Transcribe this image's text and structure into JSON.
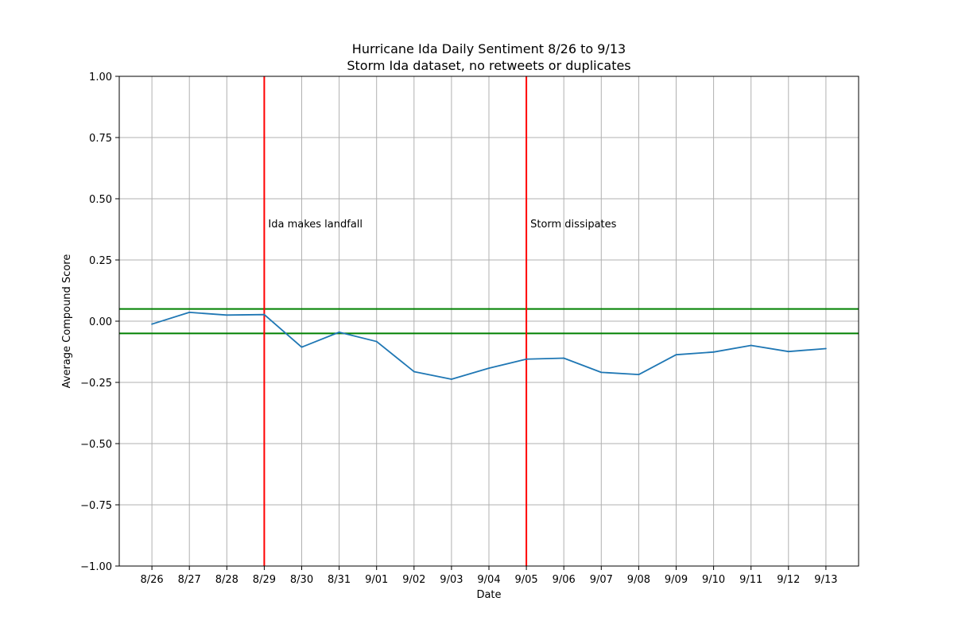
{
  "chart_data": {
    "type": "line",
    "title": "Hurricane Ida Daily Sentiment 8/26 to 9/13",
    "subtitle": "Storm Ida dataset, no retweets or duplicates",
    "xlabel": "Date",
    "ylabel": "Average Compound Score",
    "ylim": [
      -1.0,
      1.0
    ],
    "yticks": [
      "1.00",
      "0.75",
      "0.50",
      "0.25",
      "0.00",
      "−0.25",
      "−0.50",
      "−0.75",
      "−1.00"
    ],
    "ytick_values": [
      1.0,
      0.75,
      0.5,
      0.25,
      0.0,
      -0.25,
      -0.5,
      -0.75,
      -1.0
    ],
    "grid": true,
    "categories": [
      "8/26",
      "8/27",
      "8/28",
      "8/29",
      "8/30",
      "8/31",
      "9/01",
      "9/02",
      "9/03",
      "9/04",
      "9/05",
      "9/06",
      "9/07",
      "9/08",
      "9/09",
      "9/10",
      "9/11",
      "9/12",
      "9/13"
    ],
    "series": [
      {
        "color": "#1f77b4",
        "values": [
          -0.012,
          0.036,
          0.025,
          0.027,
          -0.106,
          -0.045,
          -0.083,
          -0.206,
          -0.237,
          -0.192,
          -0.155,
          -0.151,
          -0.209,
          -0.218,
          -0.137,
          -0.126,
          -0.099,
          -0.124,
          -0.112
        ]
      }
    ],
    "reference_lines": {
      "horizontal": [
        {
          "y": 0.05,
          "color": "#008000"
        },
        {
          "y": -0.05,
          "color": "#008000"
        }
      ],
      "vertical": [
        {
          "category": "8/29",
          "color": "#ff0000",
          "label": "Ida makes landfall",
          "label_y": 0.4
        },
        {
          "category": "9/05",
          "color": "#ff0000",
          "label": "Storm dissipates",
          "label_y": 0.4
        }
      ]
    }
  }
}
